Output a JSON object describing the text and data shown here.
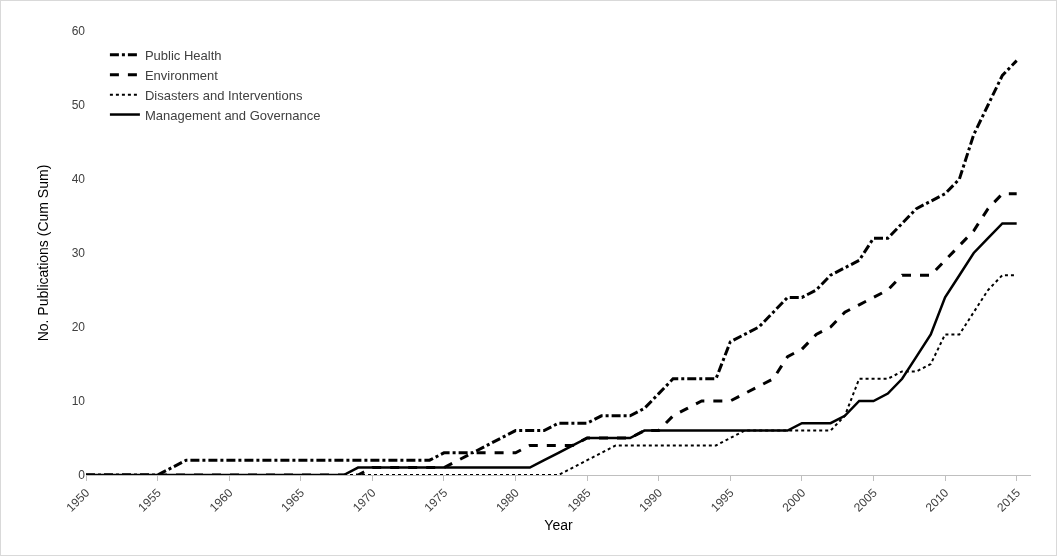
{
  "chart_data": {
    "type": "line",
    "xlabel": "Year",
    "ylabel": "No. Publications (Cum Sum)",
    "xlim": [
      1950,
      2016
    ],
    "xticks": [
      1950,
      1955,
      1960,
      1965,
      1970,
      1975,
      1980,
      1985,
      1990,
      1995,
      2000,
      2005,
      2010,
      2015
    ],
    "ylim": [
      0,
      60
    ],
    "yticks": [
      0,
      10,
      20,
      30,
      40,
      50,
      60
    ],
    "grid": false,
    "legend": "top left",
    "marker": "none",
    "series": [
      {
        "name": "Public Health",
        "color": "#000000",
        "line_style": "dashdot",
        "x": [
          1950,
          1955,
          1956,
          1957,
          1974,
          1975,
          1977,
          1978,
          1980,
          1982,
          1983,
          1985,
          1986,
          1988,
          1989,
          1990,
          1991,
          1994,
          1995,
          1996,
          1997,
          1998,
          1999,
          2000,
          2001,
          2002,
          2003,
          2004,
          2005,
          2006,
          2007,
          2008,
          2009,
          2010,
          2011,
          2012,
          2013,
          2014,
          2015
        ],
        "values": [
          0,
          0,
          1,
          2,
          2,
          3,
          3,
          4,
          6,
          6,
          7,
          7,
          8,
          8,
          9,
          11,
          13,
          13,
          18,
          19,
          20,
          22,
          24,
          24,
          25,
          27,
          28,
          29,
          32,
          32,
          34,
          36,
          37,
          38,
          40,
          46,
          50,
          54,
          56
        ]
      },
      {
        "name": "Environment",
        "color": "#000000",
        "line_style": "dashed",
        "x": [
          1950,
          1969,
          1970,
          1975,
          1976,
          1977,
          1980,
          1981,
          1984,
          1985,
          1988,
          1989,
          1990,
          1991,
          1992,
          1993,
          1995,
          1996,
          1997,
          1998,
          1999,
          2000,
          2001,
          2002,
          2003,
          2004,
          2005,
          2006,
          2007,
          2009,
          2010,
          2011,
          2012,
          2013,
          2014,
          2015
        ],
        "values": [
          0,
          0,
          1,
          1,
          2,
          3,
          3,
          4,
          4,
          5,
          5,
          6,
          6,
          8,
          9,
          10,
          10,
          11,
          12,
          13,
          16,
          17,
          19,
          20,
          22,
          23,
          24,
          25,
          27,
          27,
          29,
          31,
          33,
          36,
          38,
          38
        ]
      },
      {
        "name": "Disasters and Interventions",
        "color": "#000000",
        "line_style": "dotted",
        "x": [
          1950,
          1983,
          1984,
          1985,
          1986,
          1987,
          1994,
          1995,
          1996,
          2002,
          2003,
          2004,
          2006,
          2007,
          2008,
          2009,
          2010,
          2011,
          2012,
          2013,
          2014,
          2015
        ],
        "values": [
          0,
          0,
          1,
          2,
          3,
          4,
          4,
          5,
          6,
          6,
          8,
          13,
          13,
          14,
          14,
          15,
          19,
          19,
          22,
          25,
          27,
          27
        ]
      },
      {
        "name": "Management and Governance",
        "color": "#000000",
        "line_style": "solid",
        "x": [
          1950,
          1968,
          1969,
          1981,
          1982,
          1983,
          1984,
          1985,
          1988,
          1989,
          1999,
          2000,
          2002,
          2003,
          2004,
          2005,
          2006,
          2007,
          2008,
          2009,
          2010,
          2011,
          2012,
          2013,
          2014,
          2015
        ],
        "values": [
          0,
          0,
          1,
          1,
          2,
          3,
          4,
          5,
          5,
          6,
          6,
          7,
          7,
          8,
          10,
          10,
          11,
          13,
          16,
          19,
          24,
          27,
          30,
          32,
          34,
          34
        ]
      }
    ]
  }
}
